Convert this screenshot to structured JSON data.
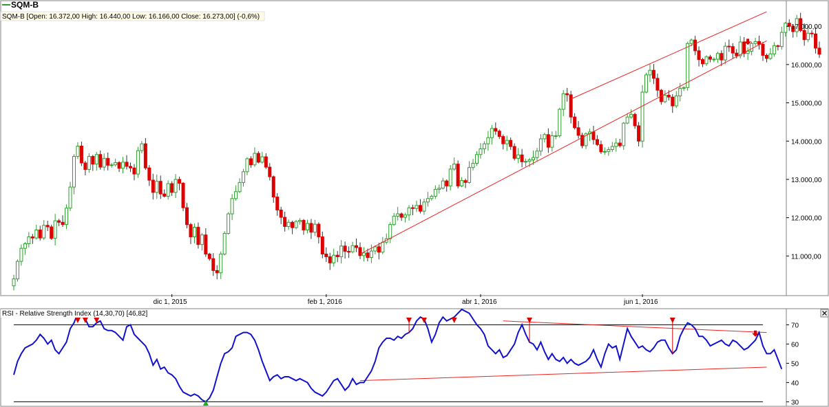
{
  "symbol": "SQM-B",
  "colors": {
    "up_candle": "#2e9e2e",
    "down_candle": "#dd0000",
    "trendline": "#ee2222",
    "rsi_line": "#1111cc",
    "grid_line": "#000000",
    "signal_marker": "#dd0000",
    "low_marker": "#22aa22",
    "title_bg": "#fffbe6"
  },
  "chart_data": [
    {
      "type": "candlestick",
      "title": "SQM-B [Open: 16.372,00  High: 16.440,00  Low: 16.166,00  Close: 16.273,00] (-0,6%)",
      "x_tick_labels": [
        "dic 1, 2015",
        "feb 1, 2016",
        "abr 1, 2016",
        "jun 1, 2016"
      ],
      "y_tick_labels": [
        "11.000,00",
        "12.000,00",
        "13.000,00",
        "14.000,00",
        "15.000,00",
        "16.000,00",
        "17.000,00"
      ],
      "y_ticks": [
        11000,
        12000,
        13000,
        14000,
        15000,
        16000,
        17000
      ],
      "ylim": [
        10000,
        17650
      ],
      "bars_visible": 200,
      "closes": [
        10400,
        10860,
        11200,
        11320,
        11500,
        11470,
        11680,
        11470,
        11800,
        11760,
        11460,
        11920,
        11880,
        11820,
        12250,
        12800,
        13600,
        13870,
        13430,
        13260,
        13600,
        13400,
        13650,
        13320,
        13550,
        13370,
        13380,
        13440,
        13290,
        13450,
        13340,
        13300,
        13140,
        13750,
        13930,
        13300,
        12980,
        12660,
        12950,
        12620,
        12560,
        12890,
        12660,
        13000,
        12900,
        12260,
        11820,
        11500,
        11750,
        11300,
        11550,
        11050,
        10930,
        10620,
        10560,
        11050,
        11590,
        12100,
        12500,
        12680,
        12920,
        13200,
        13540,
        13380,
        13680,
        13450,
        13590,
        13320,
        13070,
        12540,
        12200,
        12010,
        11770,
        11880,
        11740,
        11900,
        11930,
        11680,
        11850,
        11620,
        11830,
        11500,
        11050,
        10980,
        10820,
        11020,
        10980,
        11260,
        11120,
        11110,
        11270,
        11220,
        11010,
        11080,
        10960,
        11130,
        11240,
        11100,
        11360,
        11450,
        11820,
        12040,
        12100,
        12010,
        12070,
        12260,
        12240,
        12320,
        12170,
        12410,
        12500,
        12560,
        12740,
        12770,
        12960,
        12830,
        13270,
        13400,
        12830,
        12970,
        12920,
        13310,
        13420,
        13650,
        13800,
        13930,
        14090,
        14330,
        14260,
        14120,
        13930,
        14020,
        13860,
        13550,
        13640,
        13460,
        13470,
        13510,
        13570,
        13740,
        14060,
        14170,
        13840,
        14140,
        14140,
        14830,
        15240,
        15210,
        14630,
        14350,
        14150,
        13880,
        14190,
        14240,
        14040,
        13910,
        13720,
        13730,
        13780,
        13860,
        13950,
        13880,
        14470,
        14630,
        14700,
        14400,
        14000,
        15280,
        15730,
        15850,
        15640,
        15330,
        15030,
        15200,
        15150,
        14920,
        15180,
        15380,
        15400,
        16550,
        16640,
        16360,
        16130,
        16020,
        16200,
        16140,
        16140,
        16290,
        16120,
        16480,
        16470,
        16300,
        16230,
        16590,
        16290,
        16350,
        16550,
        16600,
        16530,
        16240,
        16160,
        16280,
        16490,
        16470,
        16840,
        17080,
        17000,
        16860,
        17200,
        16890,
        16650,
        16820,
        16800,
        16430,
        16270
      ]
    },
    {
      "type": "line",
      "title": "RSI - Relative Strength Index (14,30,70) [46,82]",
      "y_tick_labels": [
        "30",
        "40",
        "50",
        "60",
        "70"
      ],
      "y_ticks": [
        30,
        40,
        50,
        60,
        70
      ],
      "ylim": [
        28,
        78
      ],
      "thresholds": [
        30,
        70
      ],
      "values": [
        44,
        51,
        55,
        58,
        59,
        60,
        62,
        65,
        63,
        60,
        62,
        57,
        55,
        58,
        61,
        68,
        71,
        76,
        75,
        73,
        69,
        69,
        71,
        72,
        68,
        67,
        67,
        66,
        64,
        62,
        69,
        70,
        65,
        63,
        61,
        59,
        55,
        49,
        52,
        47,
        48,
        45,
        44,
        42,
        38,
        35,
        34,
        33,
        34,
        33,
        31,
        30,
        32,
        36,
        43,
        50,
        55,
        56,
        58,
        64,
        65,
        66,
        66,
        65,
        62,
        57,
        51,
        46,
        41,
        43,
        44,
        42,
        43,
        43,
        42,
        41,
        42,
        41,
        40,
        37,
        35,
        34,
        33,
        35,
        38,
        41,
        42,
        39,
        36,
        38,
        42,
        39,
        40,
        40,
        43,
        46,
        51,
        58,
        61,
        63,
        63,
        62,
        64,
        63,
        65,
        66,
        68,
        72,
        74,
        73,
        68,
        61,
        65,
        71,
        74,
        72,
        73,
        74,
        76,
        78,
        77,
        76,
        73,
        70,
        68,
        65,
        59,
        57,
        55,
        57,
        53,
        54,
        57,
        60,
        66,
        70,
        65,
        61,
        60,
        57,
        61,
        56,
        52,
        55,
        52,
        51,
        53,
        50,
        52,
        50,
        49,
        50,
        51,
        53,
        57,
        52,
        48,
        55,
        60,
        58,
        59,
        52,
        60,
        68,
        64,
        61,
        58,
        59,
        57,
        56,
        58,
        61,
        62,
        62,
        58,
        55,
        57,
        64,
        68,
        71,
        70,
        68,
        64,
        64,
        62,
        59,
        60,
        61,
        62,
        60,
        59,
        62,
        61,
        59,
        57,
        58,
        60,
        62,
        66,
        59,
        55,
        55,
        57,
        52,
        47
      ]
    },
    {
      "type": "line",
      "role": "trendlines",
      "lines": [
        {
          "pane": "price",
          "from": [
            148,
            15100
          ],
          "to": [
            200,
            17380
          ]
        },
        {
          "pane": "price",
          "from": [
            92,
            11050
          ],
          "to": [
            200,
            16620
          ]
        },
        {
          "pane": "rsi",
          "from": [
            130,
            72
          ],
          "to": [
            200,
            66
          ]
        },
        {
          "pane": "rsi",
          "from": [
            92,
            41
          ],
          "to": [
            200,
            48
          ]
        }
      ]
    },
    {
      "type": "scatter",
      "role": "signal_markers",
      "rsi_down_markers_bar": [
        17,
        19,
        22,
        105,
        109,
        117,
        137,
        175
      ],
      "rsi_up_marker_bar": [
        51
      ],
      "price_down_marker_bar": [
        195
      ],
      "rsi_end_marker_bar": [
        197
      ]
    }
  ]
}
